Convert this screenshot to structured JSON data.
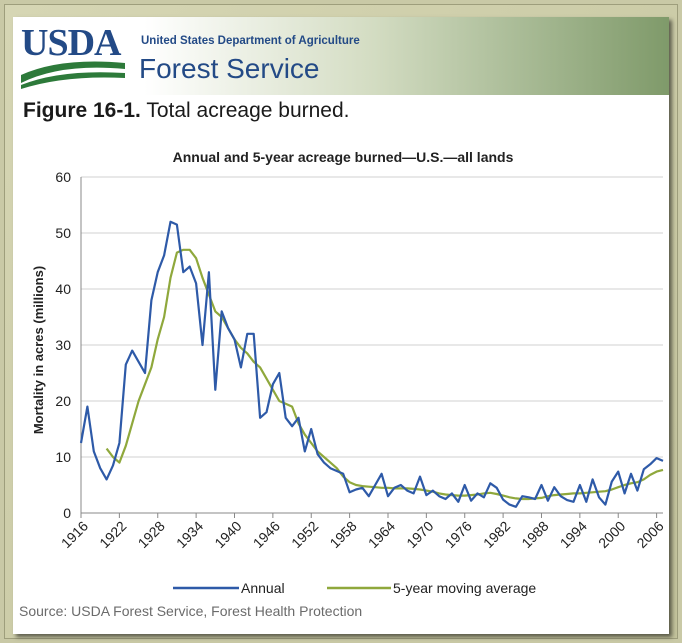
{
  "header": {
    "logo_text": "USDA",
    "agency": "United States Department of Agriculture",
    "service": "Forest Service"
  },
  "figure": {
    "number": "Figure 16-1.",
    "caption": "Total acreage burned."
  },
  "source": "Source: USDA Forest Service, Forest Health Protection",
  "colors": {
    "annual": "#2e5aa8",
    "moving_average": "#8fa83c",
    "brand": "#234a86"
  },
  "chart_data": {
    "type": "line",
    "title": "Annual and 5-year acreage burned—U.S.—all lands",
    "xlabel": "",
    "ylabel": "Mortality in acres (millions)",
    "xlim": [
      1916,
      2007
    ],
    "ylim": [
      0,
      60
    ],
    "yticks": [
      0,
      10,
      20,
      30,
      40,
      50,
      60
    ],
    "xticks": [
      "1916",
      "1922",
      "1928",
      "1934",
      "1940",
      "1946",
      "1952",
      "1958",
      "1964",
      "1970",
      "1976",
      "1982",
      "1988",
      "1994",
      "2000",
      "2006"
    ],
    "grid": true,
    "legend": "bottom",
    "series": [
      {
        "name": "Annual",
        "color": "#2e5aa8",
        "x": [
          1916,
          1917,
          1918,
          1919,
          1920,
          1921,
          1922,
          1923,
          1924,
          1925,
          1926,
          1927,
          1928,
          1929,
          1930,
          1931,
          1932,
          1933,
          1934,
          1935,
          1936,
          1937,
          1938,
          1939,
          1940,
          1941,
          1942,
          1943,
          1944,
          1945,
          1946,
          1947,
          1948,
          1949,
          1950,
          1951,
          1952,
          1953,
          1954,
          1955,
          1956,
          1957,
          1958,
          1959,
          1960,
          1961,
          1962,
          1963,
          1964,
          1965,
          1966,
          1967,
          1968,
          1969,
          1970,
          1971,
          1972,
          1973,
          1974,
          1975,
          1976,
          1977,
          1978,
          1979,
          1980,
          1981,
          1982,
          1983,
          1984,
          1985,
          1986,
          1987,
          1988,
          1989,
          1990,
          1991,
          1992,
          1993,
          1994,
          1995,
          1996,
          1997,
          1998,
          1999,
          2000,
          2001,
          2002,
          2003,
          2004,
          2005,
          2006,
          2007
        ],
        "values": [
          12.5,
          19,
          11,
          8,
          6,
          8.5,
          12.5,
          26.5,
          29,
          27,
          25,
          38,
          43,
          46,
          52,
          51.5,
          43,
          44,
          41,
          30,
          43,
          22,
          36,
          33,
          31,
          26,
          32,
          32,
          17,
          18,
          23,
          25,
          17,
          15.5,
          17,
          11,
          15,
          10.5,
          9,
          8,
          7.5,
          7,
          3.7,
          4.2,
          4.5,
          3,
          5,
          7,
          3,
          4.5,
          5,
          4,
          3.5,
          6.5,
          3.2,
          4,
          3,
          2.5,
          3.5,
          2,
          5,
          2.2,
          3.5,
          2.8,
          5.3,
          4.5,
          2.4,
          1.5,
          1.1,
          3,
          2.8,
          2.5,
          5,
          2.2,
          4.6,
          3,
          2.3,
          2,
          5,
          2,
          6,
          2.8,
          1.5,
          5.6,
          7.4,
          3.5,
          7,
          4,
          7.8,
          8.7,
          9.8,
          9.3
        ]
      },
      {
        "name": "5-year moving average",
        "color": "#8fa83c",
        "x": [
          1920,
          1921,
          1922,
          1923,
          1924,
          1925,
          1926,
          1927,
          1928,
          1929,
          1930,
          1931,
          1932,
          1933,
          1934,
          1935,
          1936,
          1937,
          1938,
          1939,
          1940,
          1941,
          1942,
          1943,
          1944,
          1945,
          1946,
          1947,
          1948,
          1949,
          1950,
          1951,
          1952,
          1953,
          1954,
          1955,
          1956,
          1957,
          1958,
          1959,
          1960,
          1961,
          1962,
          1963,
          1964,
          1965,
          1966,
          1967,
          1968,
          1969,
          1970,
          1971,
          1972,
          1973,
          1974,
          1975,
          1976,
          1977,
          1978,
          1979,
          1980,
          1981,
          1982,
          1983,
          1984,
          1985,
          1986,
          1987,
          1988,
          1989,
          1990,
          1991,
          1992,
          1993,
          1994,
          1995,
          1996,
          1997,
          1998,
          1999,
          2000,
          2001,
          2002,
          2003,
          2004,
          2005,
          2006,
          2007
        ],
        "values": [
          11.5,
          10,
          9,
          12,
          16,
          20,
          23,
          26,
          31,
          35,
          42,
          46.5,
          47,
          47,
          45.5,
          42,
          39,
          36,
          35,
          33,
          31,
          29.5,
          28.5,
          27,
          26,
          24,
          22,
          20,
          19.5,
          19,
          16,
          14,
          12.5,
          11,
          10,
          9,
          8,
          6.5,
          5.5,
          5,
          4.8,
          4.7,
          4.6,
          4.5,
          4.5,
          4.4,
          4.4,
          4.4,
          4.3,
          4.2,
          4,
          3.8,
          3.5,
          3.3,
          3.2,
          3.1,
          3.1,
          3.2,
          3.3,
          3.5,
          3.6,
          3.4,
          3.1,
          2.8,
          2.6,
          2.5,
          2.5,
          2.6,
          2.7,
          3,
          3.2,
          3.3,
          3.4,
          3.5,
          3.5,
          3.6,
          3.7,
          3.8,
          3.9,
          4.2,
          4.6,
          5,
          5.3,
          5.5,
          6,
          6.8,
          7.4,
          7.7
        ]
      }
    ]
  }
}
